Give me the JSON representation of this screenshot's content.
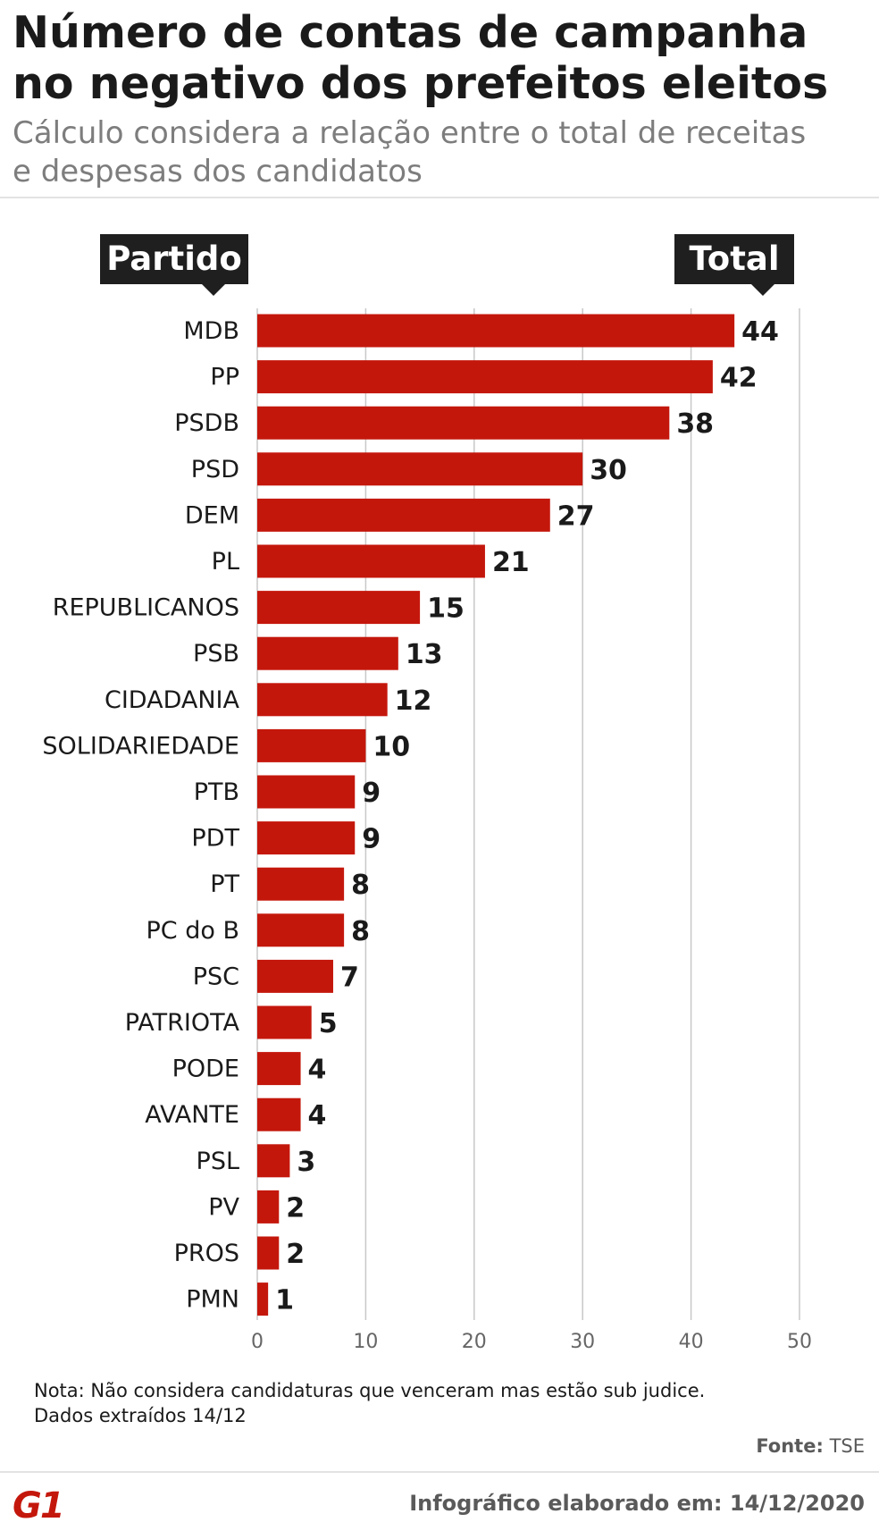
{
  "header": {
    "title_line1": "Número de contas de campanha",
    "title_line2": "no negativo dos prefeitos eleitos",
    "subtitle_line1": "Cálculo considera a relação entre o total de receitas",
    "subtitle_line2": "e despesas dos candidatos"
  },
  "columns": {
    "category_tag": "Partido",
    "value_tag": "Total"
  },
  "chart_data": {
    "type": "bar",
    "orientation": "horizontal",
    "categories": [
      "MDB",
      "PP",
      "PSDB",
      "PSD",
      "DEM",
      "PL",
      "REPUBLICANOS",
      "PSB",
      "CIDADANIA",
      "SOLIDARIEDADE",
      "PTB",
      "PDT",
      "PT",
      "PC do B",
      "PSC",
      "PATRIOTA",
      "PODE",
      "AVANTE",
      "PSL",
      "PV",
      "PROS",
      "PMN"
    ],
    "values": [
      44,
      42,
      38,
      30,
      27,
      21,
      15,
      13,
      12,
      10,
      9,
      9,
      8,
      8,
      7,
      5,
      4,
      4,
      3,
      2,
      2,
      1
    ],
    "xlim": [
      0,
      50
    ],
    "xticks": [
      0,
      10,
      20,
      30,
      40,
      50
    ],
    "grid": true,
    "data_labels": true
  },
  "colors": {
    "bar": "#c4170c",
    "grid": "#c8c8c8",
    "text": "#1a1a1a",
    "tick": "#666666"
  },
  "footer": {
    "note_line1": "Nota: Não considera candidaturas que venceram mas estão sub judice.",
    "note_line2": "Dados extraídos 14/12",
    "source_label": "Fonte:",
    "source_value": "TSE",
    "logo": "G1",
    "credit": "Infográfico elaborado em: 14/12/2020"
  }
}
